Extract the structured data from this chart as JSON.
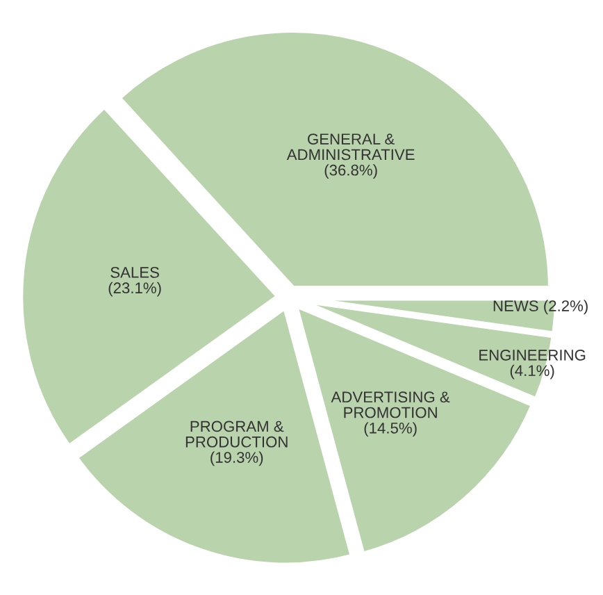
{
  "chart_data": {
    "type": "pie",
    "categories": [
      "GENERAL &\nADMINISTRATIVE",
      "SALES",
      "PROGRAM &\nPRODUCTION",
      "ADVERTISING &\nPROMOTION",
      "ENGINEERING",
      "NEWS"
    ],
    "values": [
      36.8,
      23.1,
      19.3,
      14.5,
      4.1,
      2.2
    ],
    "value_labels": [
      "(36.8%)",
      "(23.1%)",
      "(19.3%)",
      "(14.5%)",
      "(4.1%)",
      "(2.2%)"
    ],
    "colors": [
      "#b9d3ac",
      "#b9d3ac",
      "#b9d3ac",
      "#b9d3ac",
      "#b9d3ac",
      "#b9d3ac"
    ]
  }
}
